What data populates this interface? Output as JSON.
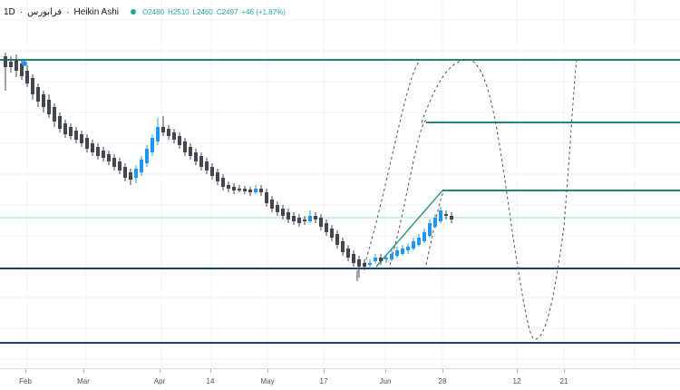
{
  "legend": {
    "timeframe": "1D",
    "symbol_name": "فرابورس",
    "chart_style": "Heikin Ashi",
    "open": "O2480",
    "high": "H2510",
    "low": "L2460",
    "close": "C2497",
    "change": "+46 (+1.87%)"
  },
  "x_axis": {
    "labels": [
      "Feb",
      "Mar",
      "Apr",
      "14",
      "May",
      "17",
      "Jun",
      "28",
      "12",
      "21"
    ]
  },
  "colors": {
    "bull_candle": "#2196f3",
    "bear_candle": "#434651",
    "horizontal_line_teal": "#26837a",
    "horizontal_line_navy": "#1c3f6e",
    "dashed_drawing": "#555555",
    "trend_line": "#3a9488"
  },
  "chart_data": {
    "type": "candlestick",
    "style": "Heikin Ashi",
    "timeframe": "1D",
    "last_bar": {
      "open": 2480,
      "high": 2510,
      "low": 2460,
      "close": 2497,
      "change": 46,
      "change_pct": 1.87
    },
    "x_tick_labels": [
      "Feb",
      "Mar",
      "Apr",
      "14",
      "May",
      "17",
      "Jun",
      "28",
      "12",
      "21"
    ],
    "grid": true,
    "drawings": [
      "horizontal lines",
      "trend line",
      "dashed curve projections"
    ]
  }
}
